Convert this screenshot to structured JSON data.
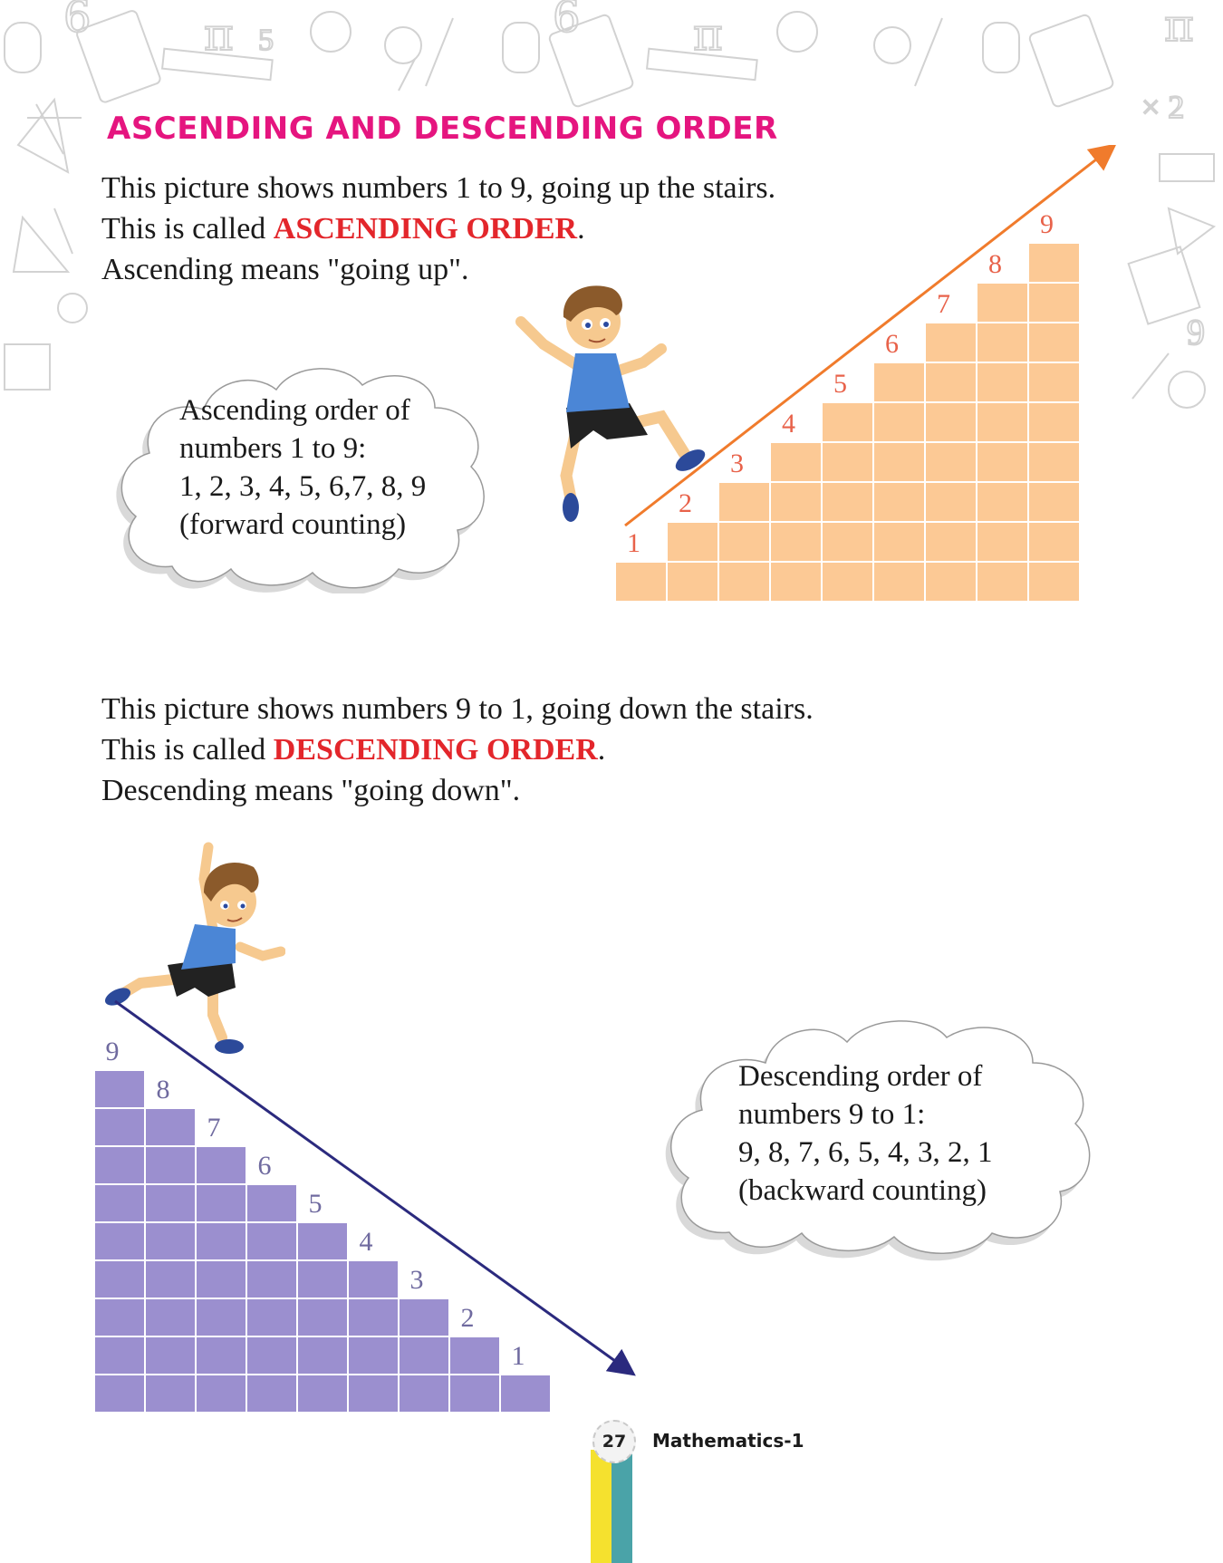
{
  "heading": "ASCENDING AND DESCENDING ORDER",
  "ascending": {
    "lines": [
      "This picture shows numbers 1 to 9, going up the stairs.",
      "This is called ",
      "ASCENDING ORDER",
      ".",
      "Ascending means \"going up\"."
    ],
    "cloud": [
      "Ascending order of",
      "numbers 1 to 9:",
      "1, 2, 3, 4, 5, 6,7, 8, 9",
      "(forward counting)"
    ],
    "step_numbers": [
      "1",
      "2",
      "3",
      "4",
      "5",
      "6",
      "7",
      "8",
      "9"
    ],
    "stair_color": "#fcc995",
    "arrow_color": "#f07b2c"
  },
  "descending": {
    "lines": [
      "This picture shows numbers 9 to 1, going down the stairs.",
      "This is called ",
      "DESCENDING ORDER",
      ".",
      "Descending means \"going down\"."
    ],
    "cloud": [
      "Descending order of",
      "numbers 9 to 1:",
      "9, 8, 7, 6, 5, 4, 3, 2, 1",
      "(backward counting)"
    ],
    "step_numbers": [
      "9",
      "8",
      "7",
      "6",
      "5",
      "4",
      "3",
      "2",
      "1"
    ],
    "stair_color": "#9b8fcf",
    "arrow_color": "#2b2a7e"
  },
  "footer": {
    "page_number": "27",
    "book_title": "Mathematics-1"
  }
}
